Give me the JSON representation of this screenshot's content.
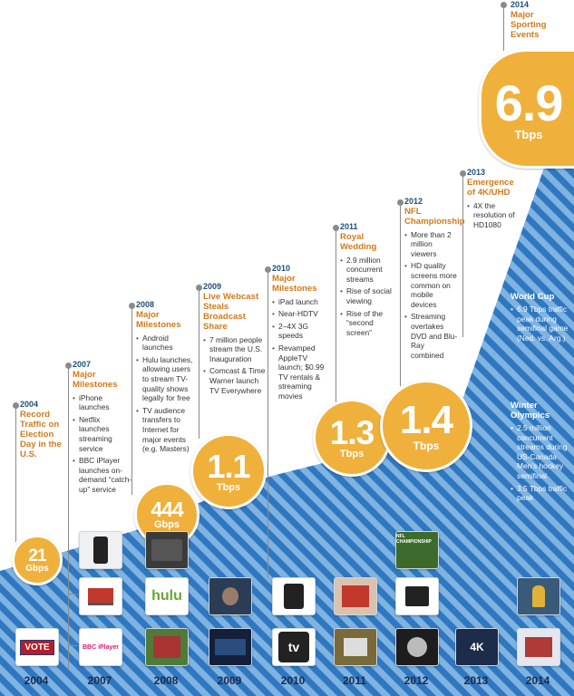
{
  "chart_data": {
    "type": "area",
    "x_ticks": [
      "2004",
      "2007",
      "2008",
      "2009",
      "2010",
      "2011",
      "2012",
      "2013",
      "2014"
    ],
    "points": [
      {
        "year": "2004",
        "value": "21",
        "unit": "Gbps"
      },
      {
        "year": "2008",
        "value": "444",
        "unit": "Gbps"
      },
      {
        "year": "2009",
        "value": "1.1",
        "unit": "Tbps"
      },
      {
        "year": "2011",
        "value": "1.3",
        "unit": "Tbps"
      },
      {
        "year": "2012",
        "value": "1.4",
        "unit": "Tbps"
      },
      {
        "year": "2014",
        "value": "6.9",
        "unit": "Tbps"
      }
    ],
    "milestones": [
      {
        "year": "2004",
        "headline": "Record Traffic on Election Day in the U.S.",
        "bullets": []
      },
      {
        "year": "2007",
        "headline": "Major Milestones",
        "bullets": [
          "iPhone launches",
          "Netflix launches streaming service",
          "BBC iPlayer launches on-demand “catch-up” service"
        ]
      },
      {
        "year": "2008",
        "headline": "Major Milestones",
        "bullets": [
          "Android launches",
          "Hulu launches, allowing users to stream TV-quality shows legally for free",
          "TV audience transfers to Internet for major events (e.g. Masters)"
        ]
      },
      {
        "year": "2009",
        "headline": "Live Webcast Steals Broadcast Share",
        "bullets": [
          "7 million people stream the U.S. Inauguration",
          "Comcast & Time Warner launch TV Everywhere"
        ]
      },
      {
        "year": "2010",
        "headline": "Major Milestones",
        "bullets": [
          "iPad launch",
          "Near-HDTV",
          "2–4X 3G speeds",
          "Revamped AppleTV launch; $0.99 TV rentals & streaming movies"
        ]
      },
      {
        "year": "2011",
        "headline": "Royal Wedding",
        "bullets": [
          "2.9 million concurrent streams",
          "Rise of social viewing",
          "Rise of the “second screen”"
        ]
      },
      {
        "year": "2012",
        "headline": "NFL Championship",
        "bullets": [
          "More than 2 million viewers",
          "HD quality screens more common on mobile devices",
          "Streaming overtakes DVD and Blu-Ray combined"
        ]
      },
      {
        "year": "2013",
        "headline": "Emergence of 4K/UHD",
        "bullets": [
          "4X the resolution of HD1080"
        ]
      },
      {
        "year": "2014",
        "headline": "Major Sporting Events",
        "bullets": []
      }
    ],
    "side_notes": [
      {
        "headline": "World Cup",
        "bullets": [
          "6.9 Tbps traffic peak during semifinal game (Ned. vs. Arg.)"
        ]
      },
      {
        "headline": "Winter Olympics",
        "bullets": [
          "2.5 million concurrent streams during US-Canada Men’s hockey semifinal",
          "3.5 Tbps traffic peak"
        ]
      }
    ]
  },
  "tiles": {
    "vote": "VOTE",
    "bbc": "BBC iPlayer",
    "hulu": "hulu",
    "tv": "tv",
    "nfl": "NFL CHAMPIONSHIP",
    "k4": "4K"
  },
  "colors": {
    "stripe_dark": "#2f78c0",
    "stripe_light": "#7fb3e2",
    "bubble": "#efb13b",
    "headline": "#d07a1a",
    "year_label": "#1f4e79"
  }
}
